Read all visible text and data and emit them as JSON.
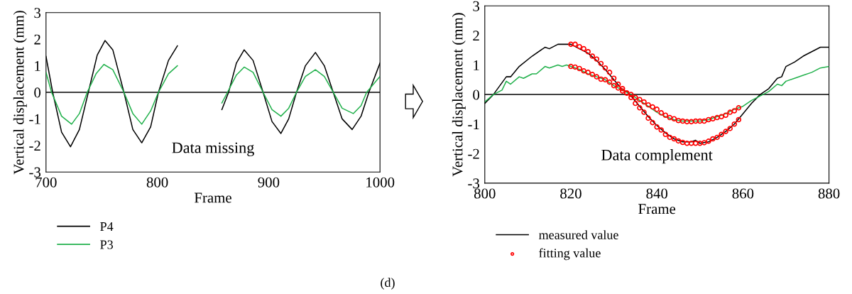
{
  "chart_data": [
    {
      "type": "line",
      "xlabel": "Frame",
      "ylabel": "Vertical displacement (mm)",
      "xlim": [
        700,
        1000
      ],
      "ylim": [
        -3,
        3
      ],
      "xticks": [
        700,
        800,
        900,
        1000
      ],
      "yticks": [
        -3,
        -2,
        -1,
        0,
        1,
        2,
        3
      ],
      "grid": false,
      "legend": "bottom left",
      "marker": "none",
      "line_style": "solid",
      "ref_lines": [
        {
          "axis": "y",
          "value": 0,
          "color": "#000000"
        }
      ],
      "annotations": [
        "Data missing",
        "(d)"
      ],
      "series": [
        {
          "name": "P4",
          "color": "#000000",
          "x": [
            700,
            706,
            714,
            722,
            730,
            738,
            746,
            753,
            760,
            770,
            778,
            786,
            794,
            801,
            810,
            818,
            838,
            858,
            864,
            871,
            878,
            886,
            895,
            903,
            911,
            918,
            925,
            933,
            942,
            950,
            958,
            966,
            975,
            983,
            990,
            1000
          ],
          "values": [
            1.35,
            0,
            -1.5,
            -2.05,
            -1.4,
            0,
            1.4,
            1.95,
            1.6,
            0,
            -1.4,
            -1.9,
            -1.3,
            0,
            1.2,
            1.75,
            null,
            -0.65,
            0,
            1.1,
            1.6,
            1.2,
            0,
            -1.1,
            -1.55,
            -1.0,
            0,
            1.0,
            1.5,
            1.0,
            0,
            -1.0,
            -1.4,
            -0.9,
            0,
            1.1
          ]
        },
        {
          "name": "P3",
          "color": "#22b14c",
          "x": [
            700,
            705,
            714,
            723,
            730,
            737,
            745,
            752,
            760,
            770,
            778,
            786,
            794,
            801,
            810,
            818,
            838,
            858,
            863,
            871,
            878,
            886,
            895,
            903,
            911,
            918,
            925,
            933,
            942,
            950,
            958,
            966,
            976,
            983,
            988,
            1000
          ],
          "values": [
            0.75,
            0,
            -0.9,
            -1.2,
            -0.8,
            0,
            0.7,
            1.05,
            0.85,
            0,
            -0.8,
            -1.2,
            -0.7,
            0,
            0.7,
            1.0,
            null,
            -0.4,
            0,
            0.65,
            0.95,
            0.75,
            0,
            -0.65,
            -0.9,
            -0.6,
            0,
            0.6,
            0.85,
            0.6,
            0,
            -0.6,
            -0.8,
            -0.5,
            0,
            0.6
          ]
        }
      ]
    },
    {
      "type": "line",
      "xlabel": "Frame",
      "ylabel": "Vertical displacement (mm)",
      "xlim": [
        800,
        880
      ],
      "ylim": [
        -3,
        3
      ],
      "xticks": [
        800,
        820,
        840,
        860,
        880
      ],
      "yticks": [
        -3,
        -2,
        -1,
        0,
        1,
        2,
        3
      ],
      "grid": false,
      "legend": "bottom left",
      "line_style": "solid",
      "ref_lines": [
        {
          "axis": "y",
          "value": 0,
          "color": "#000000"
        }
      ],
      "annotations": [
        "Data complement"
      ],
      "series": [
        {
          "name": "measured value",
          "color": "#000000",
          "x": [
            800,
            802,
            805,
            806,
            808,
            811,
            814,
            815,
            817,
            819,
            820,
            822,
            824,
            826,
            828,
            830,
            832,
            833,
            834,
            836,
            838,
            840,
            842,
            844,
            846,
            848,
            849,
            850,
            852,
            854,
            856,
            858,
            860,
            862,
            864,
            866,
            868,
            869,
            870,
            872,
            874,
            876,
            878,
            880
          ],
          "values": [
            -0.3,
            0,
            0.6,
            0.6,
            0.95,
            1.3,
            1.6,
            1.55,
            1.7,
            1.7,
            1.7,
            1.55,
            1.4,
            1.15,
            0.85,
            0.5,
            0.15,
            0.1,
            -0.05,
            -0.4,
            -0.75,
            -1.05,
            -1.3,
            -1.5,
            -1.6,
            -1.6,
            -1.55,
            -1.65,
            -1.6,
            -1.45,
            -1.25,
            -1.0,
            -0.65,
            -0.3,
            0.0,
            0.2,
            0.55,
            0.6,
            0.95,
            1.1,
            1.3,
            1.45,
            1.6,
            1.6
          ]
        },
        {
          "color": "#22b14c",
          "x": [
            800,
            802,
            804,
            805,
            806,
            808,
            809,
            811,
            812,
            814,
            815,
            817,
            818,
            819,
            820,
            822,
            824,
            826,
            828,
            830,
            832,
            834,
            836,
            838,
            840,
            842,
            844,
            846,
            848,
            850,
            852,
            854,
            856,
            858,
            860,
            862,
            864,
            866,
            868,
            869,
            870,
            872,
            874,
            876,
            878,
            880
          ],
          "values": [
            -0.25,
            0,
            0.15,
            0.45,
            0.35,
            0.6,
            0.55,
            0.7,
            0.7,
            0.95,
            0.9,
            1.0,
            0.95,
            1.0,
            0.95,
            0.85,
            0.7,
            0.6,
            0.5,
            0.3,
            0.15,
            0.0,
            -0.2,
            -0.4,
            -0.6,
            -0.75,
            -0.85,
            -0.9,
            -0.9,
            -0.9,
            -0.85,
            -0.75,
            -0.65,
            -0.5,
            -0.4,
            -0.2,
            -0.05,
            0.1,
            0.35,
            0.3,
            0.45,
            0.55,
            0.65,
            0.75,
            0.9,
            0.95
          ]
        },
        {
          "name": "fitting value",
          "type": "scatter",
          "marker": "circle",
          "color": "#ff0000",
          "x": [
            820,
            821,
            822,
            823,
            824,
            825,
            826,
            827,
            828,
            829,
            830,
            831,
            832,
            833,
            834,
            835,
            836,
            837,
            838,
            839,
            840,
            841,
            842,
            843,
            844,
            845,
            846,
            847,
            848,
            849,
            850,
            851,
            852,
            853,
            854,
            855,
            856,
            857,
            858,
            859
          ],
          "values": [
            1.7,
            1.7,
            1.62,
            1.55,
            1.45,
            1.3,
            1.2,
            1.05,
            0.9,
            0.75,
            0.55,
            0.35,
            0.2,
            0.05,
            -0.1,
            -0.3,
            -0.45,
            -0.6,
            -0.8,
            -0.95,
            -1.1,
            -1.2,
            -1.35,
            -1.45,
            -1.5,
            -1.57,
            -1.62,
            -1.65,
            -1.65,
            -1.65,
            -1.65,
            -1.63,
            -1.58,
            -1.5,
            -1.45,
            -1.35,
            -1.25,
            -1.15,
            -1.0,
            -0.85
          ]
        },
        {
          "type": "scatter",
          "marker": "circle",
          "color": "#ff0000",
          "x": [
            820,
            821,
            822,
            823,
            824,
            825,
            826,
            827,
            828,
            829,
            830,
            831,
            832,
            833,
            834,
            835,
            836,
            837,
            838,
            839,
            840,
            841,
            842,
            843,
            844,
            845,
            846,
            847,
            848,
            849,
            850,
            851,
            852,
            853,
            854,
            855,
            856,
            857,
            858,
            859
          ],
          "values": [
            0.95,
            0.93,
            0.88,
            0.8,
            0.75,
            0.68,
            0.6,
            0.52,
            0.5,
            0.42,
            0.3,
            0.22,
            0.12,
            0.05,
            0.0,
            -0.1,
            -0.17,
            -0.25,
            -0.35,
            -0.42,
            -0.5,
            -0.62,
            -0.7,
            -0.78,
            -0.82,
            -0.88,
            -0.9,
            -0.92,
            -0.92,
            -0.9,
            -0.9,
            -0.9,
            -0.85,
            -0.82,
            -0.78,
            -0.75,
            -0.7,
            -0.6,
            -0.55,
            -0.45
          ]
        }
      ]
    }
  ]
}
